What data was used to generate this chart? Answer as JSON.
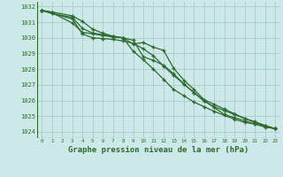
{
  "bg_color": "#cce8e8",
  "grid_color": "#aacccc",
  "line_color": "#2d6a2d",
  "xlabel": "Graphe pression niveau de la mer (hPa)",
  "xlim": [
    -0.5,
    23.5
  ],
  "ylim": [
    1023.6,
    1032.3
  ],
  "yticks": [
    1024,
    1025,
    1026,
    1027,
    1028,
    1029,
    1030,
    1031,
    1032
  ],
  "xticks": [
    0,
    1,
    2,
    3,
    4,
    5,
    6,
    7,
    8,
    9,
    10,
    11,
    12,
    13,
    14,
    15,
    16,
    17,
    18,
    19,
    20,
    21,
    22,
    23
  ],
  "lines": [
    {
      "x": [
        0,
        1,
        3,
        4,
        5,
        6,
        7,
        8,
        9,
        10,
        11,
        12,
        13,
        14,
        15,
        16,
        17,
        18,
        19,
        20,
        21,
        22,
        23
      ],
      "y": [
        1031.75,
        1031.65,
        1031.4,
        1031.05,
        1030.55,
        1030.3,
        1030.1,
        1030.0,
        1029.6,
        1029.7,
        1029.4,
        1029.2,
        1028.05,
        1027.3,
        1026.7,
        1026.05,
        1025.75,
        1025.45,
        1025.15,
        1024.85,
        1024.65,
        1024.4,
        1024.2
      ],
      "marker": "+"
    },
    {
      "x": [
        0,
        1,
        3,
        4,
        5,
        6,
        7,
        8,
        9,
        10,
        11,
        12,
        13,
        14,
        15,
        16,
        17,
        18,
        19,
        20,
        21,
        22,
        23
      ],
      "y": [
        1031.75,
        1031.6,
        1030.95,
        1030.35,
        1030.25,
        1030.15,
        1030.05,
        1030.0,
        1029.85,
        1028.8,
        1028.55,
        1028.25,
        1027.7,
        1027.05,
        1026.5,
        1025.95,
        1025.6,
        1025.35,
        1025.1,
        1024.85,
        1024.6,
        1024.4,
        1024.2
      ],
      "marker": "+"
    },
    {
      "x": [
        0,
        1,
        3,
        4,
        5,
        6,
        7,
        8,
        9,
        10,
        11,
        12,
        13,
        14,
        15,
        16,
        17,
        18,
        19,
        20,
        21,
        22,
        23
      ],
      "y": [
        1031.75,
        1031.55,
        1031.3,
        1030.6,
        1030.3,
        1030.2,
        1030.1,
        1030.0,
        1029.15,
        1028.6,
        1028.0,
        1027.35,
        1026.7,
        1026.3,
        1025.9,
        1025.6,
        1025.3,
        1025.05,
        1024.8,
        1024.6,
        1024.5,
        1024.3,
        1024.2
      ],
      "marker": "+"
    },
    {
      "x": [
        0,
        3,
        4,
        5,
        6,
        7,
        8,
        9,
        10,
        11,
        12,
        13,
        14,
        15,
        16,
        17,
        18,
        19,
        20,
        21,
        22,
        23
      ],
      "y": [
        1031.75,
        1031.2,
        1030.25,
        1030.0,
        1029.95,
        1029.9,
        1029.8,
        1029.65,
        1029.3,
        1028.85,
        1028.2,
        1027.6,
        1027.05,
        1026.5,
        1026.0,
        1025.55,
        1025.1,
        1024.9,
        1024.7,
        1024.5,
        1024.35,
        1024.2
      ],
      "marker": "+"
    }
  ]
}
